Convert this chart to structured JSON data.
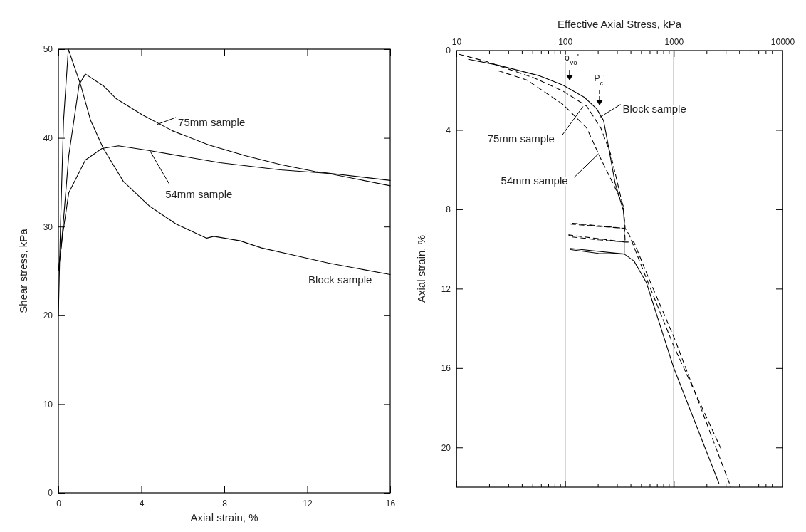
{
  "chart_data": [
    {
      "type": "line",
      "xlabel": "Axial strain,  %",
      "ylabel": "Shear stress,  kPa",
      "xlim": [
        0,
        16
      ],
      "ylim": [
        0,
        50
      ],
      "xticks": [
        0,
        4,
        8,
        12,
        16
      ],
      "yticks": [
        0,
        10,
        20,
        30,
        40,
        50
      ],
      "grid": false,
      "series": [
        {
          "color": "#000000",
          "line_style": "solid",
          "x": [
            0,
            0.1,
            0.25,
            0.48,
            1.07,
            1.55,
            2.17,
            3.13,
            4.4,
            5.67,
            7.15,
            7.5,
            8.76,
            9.8,
            11.3,
            13.0,
            16
          ],
          "values": [
            20,
            30,
            42,
            50,
            46,
            42,
            38.8,
            35.1,
            32.3,
            30.3,
            28.7,
            28.9,
            28.4,
            27.6,
            26.8,
            25.9,
            24.6
          ]
        },
        {
          "color": "#000000",
          "line_style": "solid",
          "x": [
            0,
            0.15,
            0.5,
            1.0,
            1.3,
            2.2,
            2.8,
            4.05,
            5.5,
            7.25,
            9,
            10.7,
            12.4,
            16
          ],
          "values": [
            25,
            28,
            38,
            46,
            47.2,
            45.8,
            44.4,
            42.6,
            40.8,
            39.2,
            38,
            37,
            36.2,
            35.2
          ]
        },
        {
          "color": "#000000",
          "line_style": "solid",
          "x": [
            0,
            0.2,
            0.5,
            1.3,
            2.1,
            2.9,
            4.3,
            7.8,
            10.7,
            13,
            16
          ],
          "values": [
            25,
            29,
            33.8,
            37.5,
            38.8,
            39.1,
            38.6,
            37.2,
            36.4,
            36,
            34.6
          ]
        }
      ],
      "annotations": [
        {
          "text": "75mm sample",
          "x": 4.74,
          "y": 41.5
        },
        {
          "text": "54mm sample",
          "x": 4.4,
          "y": 38.6
        },
        {
          "text": "Block sample",
          "x": 14.5,
          "y": 25.3
        }
      ]
    },
    {
      "type": "line",
      "xlabel": "Effective Axial Stress,  kPa",
      "ylabel": "Axial strain,  %",
      "log": "x",
      "xlim": [
        10,
        10000
      ],
      "ylim": [
        22,
        0
      ],
      "grid": "x",
      "xticks": [
        10,
        {
          "value": 20,
          "label": null
        },
        {
          "value": 30,
          "label": null
        },
        {
          "value": 40,
          "label": null
        },
        {
          "value": 50,
          "label": null
        },
        {
          "value": 60,
          "label": null
        },
        {
          "value": 70,
          "label": null
        },
        {
          "value": 80,
          "label": null
        },
        {
          "value": 90,
          "label": null
        },
        100,
        {
          "value": 200,
          "label": null
        },
        {
          "value": 300,
          "label": null
        },
        {
          "value": 400,
          "label": null
        },
        {
          "value": 500,
          "label": null
        },
        {
          "value": 600,
          "label": null
        },
        {
          "value": 700,
          "label": null
        },
        {
          "value": 800,
          "label": null
        },
        {
          "value": 900,
          "label": null
        },
        1000,
        {
          "value": 2000,
          "label": null
        },
        {
          "value": 3000,
          "label": null
        },
        {
          "value": 4000,
          "label": null
        },
        {
          "value": 5000,
          "label": null
        },
        {
          "value": 6000,
          "label": null
        },
        {
          "value": 7000,
          "label": null
        },
        {
          "value": 8000,
          "label": null
        },
        {
          "value": 9000,
          "label": null
        },
        10000
      ],
      "yticks": [
        0,
        4,
        8,
        12,
        16,
        20
      ],
      "series": [
        {
          "color": "#000000",
          "line_style": "solid",
          "x": [
            12.9,
            24.4,
            58,
            95.5,
            150,
            195,
            226,
            248,
            288,
            345,
            350,
            350,
            111,
            113,
            203,
            350,
            430,
            560,
            1000,
            2600
          ],
          "values": [
            0.44,
            0.74,
            1.27,
            1.74,
            2.35,
            2.93,
            3.53,
            4.7,
            6.66,
            8.1,
            8.7,
            10.25,
            9.97,
            10.03,
            10.22,
            10.25,
            10.6,
            11.7,
            16.0,
            21.8
          ]
        },
        {
          "color": "#000000",
          "line_style": "dashed",
          "x": [
            10.6,
            18.9,
            52,
            95,
            158,
            213,
            262,
            303,
            345,
            357,
            111,
            113,
            203,
            357,
            390,
            525,
            1000,
            2790
          ],
          "values": [
            0.19,
            0.55,
            1.38,
            2.03,
            2.8,
            3.9,
            5.2,
            6.66,
            7.97,
            8.96,
            8.69,
            8.75,
            8.86,
            8.96,
            9.3,
            11.1,
            14.9,
            20.2
          ]
        },
        {
          "color": "#000000",
          "line_style": "dashed",
          "x": [
            24.4,
            44.8,
            95.5,
            158,
            213,
            288,
            345,
            357,
            108,
            111,
            203,
            357,
            430,
            560,
            1030,
            3350
          ],
          "values": [
            1.02,
            1.49,
            2.71,
            3.9,
            5.45,
            6.9,
            7.86,
            9.65,
            9.29,
            9.38,
            9.54,
            9.65,
            9.65,
            11.2,
            14.6,
            22
          ]
        }
      ],
      "annotations": [
        {
          "text": "Block sample",
          "x": 209,
          "y": 3.36
        },
        {
          "text": "75mm sample",
          "x": 146,
          "y": 2.82
        },
        {
          "text": "54mm sample",
          "x": 203,
          "y": 5.2
        },
        "σ$_{vo}$'",
        "P$_{c}$'"
      ]
    }
  ]
}
